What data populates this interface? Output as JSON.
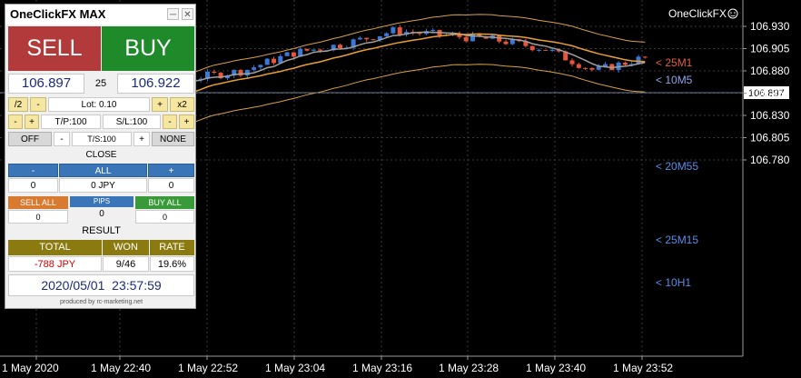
{
  "chart": {
    "price_labels": [
      "106.930",
      "106.905",
      "106.880",
      "106.855",
      "106.830",
      "106.805",
      "106.780"
    ],
    "current_price": "106.897",
    "time_labels": [
      "1 May 2020",
      "1 May 22:40",
      "1 May 22:52",
      "1 May 23:04",
      "1 May 23:16",
      "1 May 23:28",
      "1 May 23:40",
      "1 May 23:52"
    ],
    "corner_label": "OneClickFX",
    "ma_labels": [
      {
        "text": "< 25M1",
        "color": "#e06040"
      },
      {
        "text": "< 10M5",
        "color": "#8fa3e8"
      },
      {
        "text": "< 20M55",
        "color": "#5a8ee8"
      },
      {
        "text": "< 25M15",
        "color": "#5a8ee8"
      },
      {
        "text": "< 10H1",
        "color": "#5a8ee8"
      }
    ],
    "colors": {
      "bull": "#3c78d8",
      "bear": "#e8553a",
      "ma_fast": "#a0a0a0",
      "ma_slow": "#e8a030",
      "band": "#d8a040",
      "grid": "#3a3a3a"
    }
  },
  "panel": {
    "title": "OneClickFX MAX",
    "sell_label": "SELL",
    "buy_label": "BUY",
    "bid": "106.897",
    "spread": "25",
    "ask": "106.922",
    "div2": "/2",
    "minus": "-",
    "plus": "+",
    "lot": "Lot: 0.10",
    "x2": "x2",
    "tp": "T/P:100",
    "sl": "S/L:100",
    "off": "OFF",
    "ts": "T/S:100",
    "none": "NONE",
    "close_label": "CLOSE",
    "all_label": "ALL",
    "close_minus_val": "0",
    "close_all_val": "0 JPY",
    "close_plus_val": "0",
    "sell_all": "SELL ALL",
    "pips": "PIPS",
    "buy_all": "BUY ALL",
    "sell_all_val": "0",
    "pips_val": "0",
    "buy_all_val": "0",
    "result_label": "RESULT",
    "total_label": "TOTAL",
    "won_label": "WON",
    "rate_label": "RATE",
    "total_val": "-788 JPY",
    "won_val": "9/46",
    "rate_val": "19.6%",
    "date": "2020/05/01",
    "time": "23:57:59",
    "footer": "produced by rc-marketing.net",
    "colors": {
      "sell": "#b23a3a",
      "buy": "#1f8a2a",
      "header_blue": "#3a75b8",
      "orange": "#d87a30",
      "green": "#3a9a3a",
      "olive": "#8a7a10",
      "red_text": "#cc0000"
    }
  }
}
